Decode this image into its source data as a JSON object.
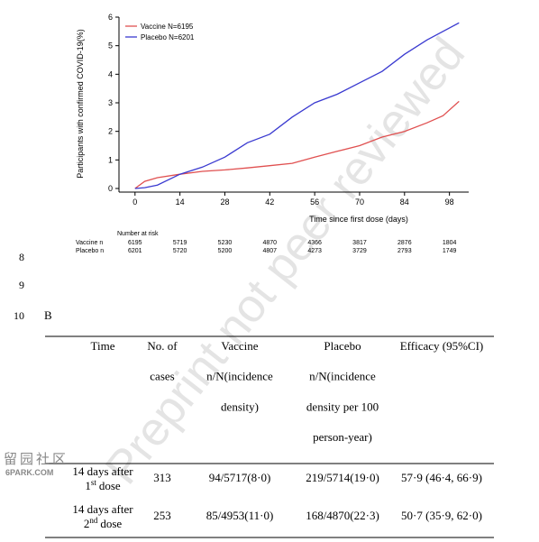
{
  "chart_data": {
    "type": "line",
    "ylabel": "Participants with confirmed COVID-19(%)",
    "xlabel": "Time since first dose (days)",
    "x": [
      0,
      3,
      7,
      14,
      21,
      28,
      35,
      42,
      49,
      56,
      63,
      70,
      77,
      84,
      91,
      96,
      101
    ],
    "series": [
      {
        "name": "Vaccine N=6195",
        "color": "#e05050",
        "values": [
          0,
          0.25,
          0.38,
          0.5,
          0.6,
          0.65,
          0.72,
          0.8,
          0.88,
          1.1,
          1.3,
          1.5,
          1.8,
          2.0,
          2.3,
          2.55,
          3.05
        ]
      },
      {
        "name": "Placebo N=6201",
        "color": "#3a3ad0",
        "values": [
          0,
          0.03,
          0.12,
          0.5,
          0.75,
          1.1,
          1.6,
          1.9,
          2.5,
          3.0,
          3.3,
          3.7,
          4.1,
          4.7,
          5.2,
          5.5,
          5.8
        ]
      }
    ],
    "xlim": [
      -5,
      104
    ],
    "ylim": [
      0,
      6
    ],
    "xticks": [
      0,
      14,
      28,
      42,
      56,
      70,
      84,
      98
    ],
    "yticks": [
      0,
      1,
      2,
      3,
      4,
      5,
      6
    ],
    "risk_table": {
      "title": "Number at risk",
      "rows": [
        {
          "label": "Vaccine n",
          "values": [
            "6195",
            "5719",
            "5230",
            "4870",
            "4366",
            "3817",
            "2876",
            "1804"
          ]
        },
        {
          "label": "Placebo n",
          "values": [
            "6201",
            "5720",
            "5200",
            "4807",
            "4273",
            "3729",
            "2793",
            "1749"
          ]
        }
      ]
    }
  },
  "line_numbers": [
    "8",
    "9",
    "10"
  ],
  "panel_label": "B",
  "table": {
    "header": [
      [
        "Time"
      ],
      [
        "No. of",
        "cases"
      ],
      [
        "Vaccine",
        "n/N(incidence",
        "density)"
      ],
      [
        "Placebo",
        "n/N(incidence",
        "density per 100",
        "person-year)"
      ],
      [
        "Efficacy (95%CI)"
      ]
    ],
    "rows": [
      {
        "time": {
          "line1": "14 days after",
          "num": "1",
          "sup": "st",
          "post": "dose"
        },
        "cells": [
          "313",
          "94/5717(8·0)",
          "219/5714(19·0)",
          "57·9 (46·4, 66·9)"
        ]
      },
      {
        "time": {
          "line1": "14 days after",
          "num": "2",
          "sup": "nd",
          "post": "dose"
        },
        "cells": [
          "253",
          "85/4953(11·0)",
          "168/4870(22·3)",
          "50·7 (35·9, 62·0)"
        ]
      }
    ]
  },
  "watermark": "Preprint not peer reviewed",
  "logo": {
    "cn": "留园社区",
    "en": "6PARK.COM"
  }
}
